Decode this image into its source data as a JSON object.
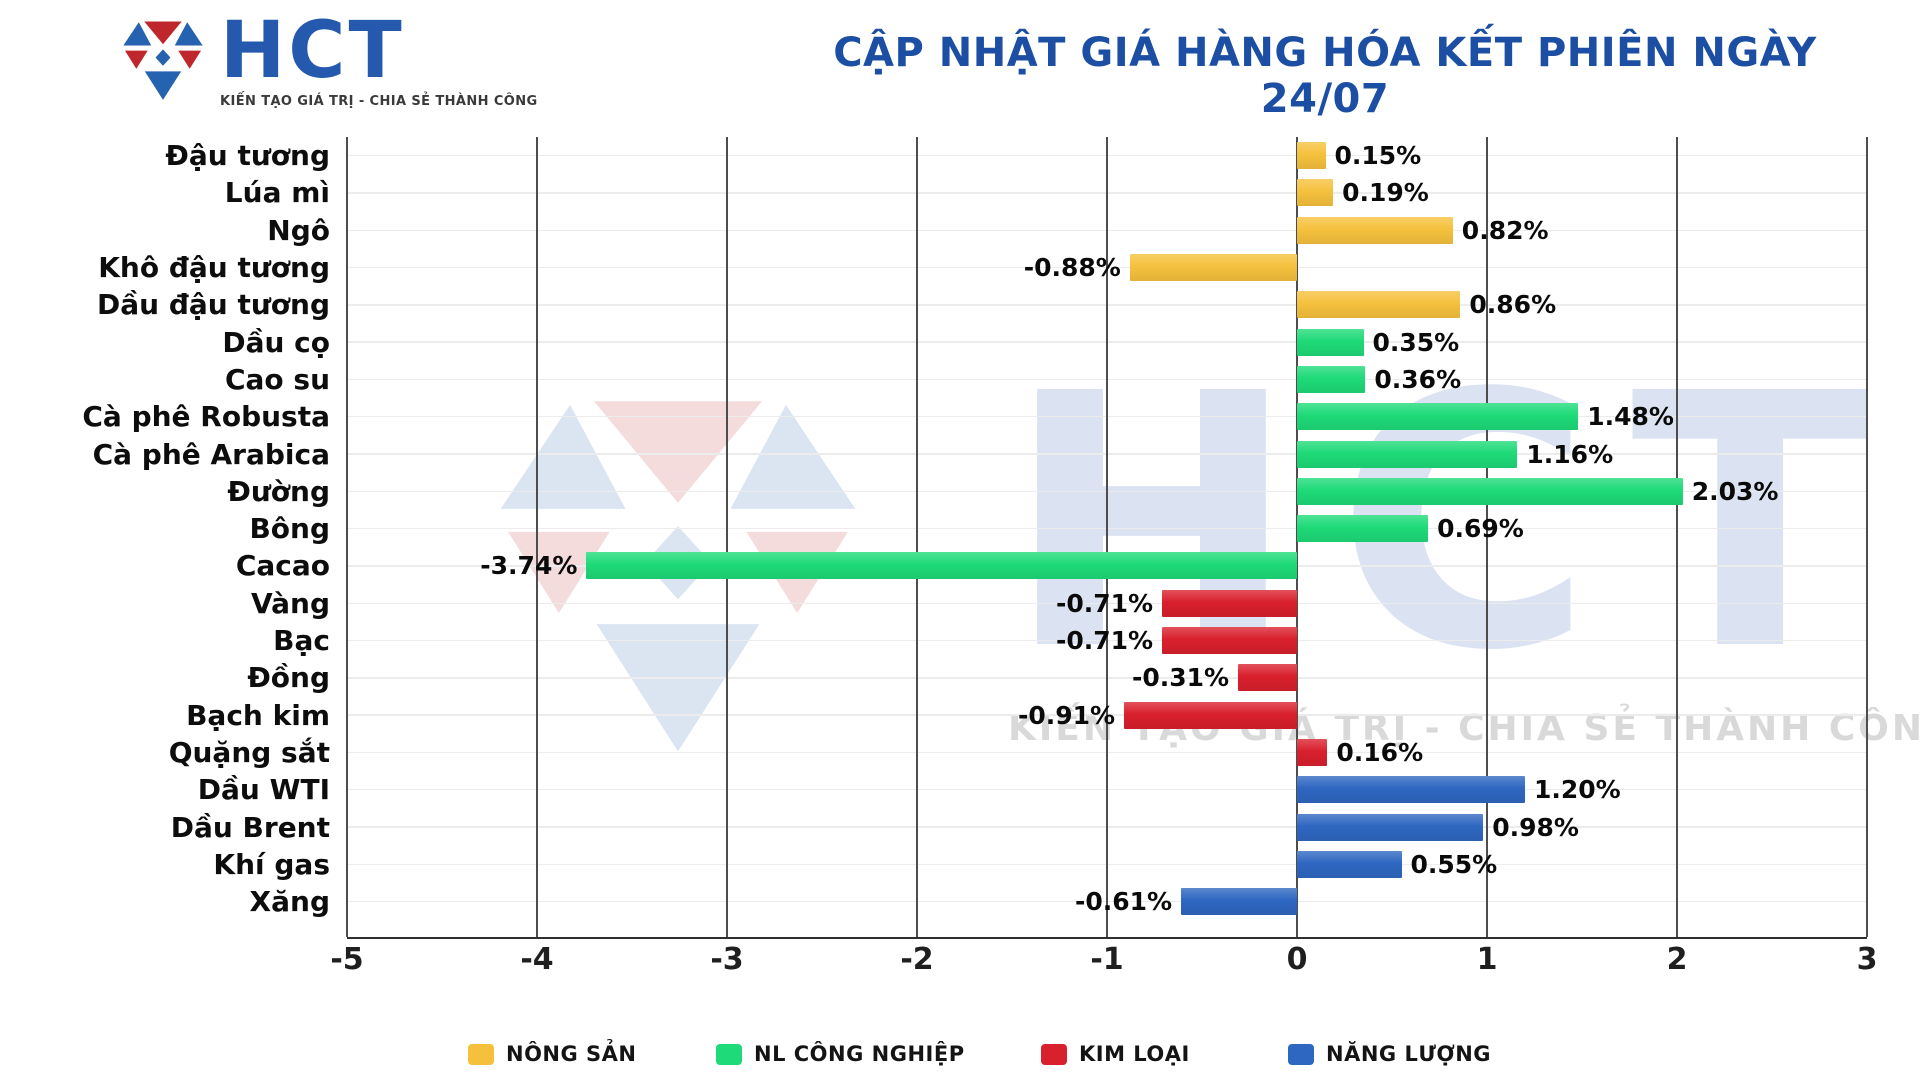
{
  "logo": {
    "text": "HCT",
    "tagline": "KIẾN TẠO GIÁ TRỊ - CHIA SẺ THÀNH CÔNG"
  },
  "watermark": {
    "text": "HCT",
    "tagline": "KIẾN TẠO GIÁ TRỊ - CHIA SẺ THÀNH CÔNG"
  },
  "chart_data": {
    "type": "bar",
    "orientation": "horizontal",
    "title": "CẬP NHẬT GIÁ HÀNG HÓA KẾT PHIÊN NGÀY 24/07",
    "xlim": [
      -5,
      3
    ],
    "xticks": [
      "-5",
      "-4",
      "-3",
      "-2",
      "-1",
      "0",
      "1",
      "2",
      "3"
    ],
    "grid": true,
    "legend_position": "bottom",
    "groups": [
      {
        "name": "NÔNG SẢN",
        "color": "#F5C13D"
      },
      {
        "name": "NL CÔNG NGHIỆP",
        "color": "#1EDA78"
      },
      {
        "name": "KIM LOẠI",
        "color": "#D9202D"
      },
      {
        "name": "NĂNG LƯỢNG",
        "color": "#2E67C1"
      }
    ],
    "items": [
      {
        "label": "Đậu tương",
        "value": 0.15,
        "display": "0.15%",
        "group": "NÔNG SẢN"
      },
      {
        "label": "Lúa mì",
        "value": 0.19,
        "display": "0.19%",
        "group": "NÔNG SẢN"
      },
      {
        "label": "Ngô",
        "value": 0.82,
        "display": "0.82%",
        "group": "NÔNG SẢN"
      },
      {
        "label": "Khô đậu tương",
        "value": -0.88,
        "display": "-0.88%",
        "group": "NÔNG SẢN"
      },
      {
        "label": "Dầu đậu tương",
        "value": 0.86,
        "display": "0.86%",
        "group": "NÔNG SẢN"
      },
      {
        "label": "Dầu cọ",
        "value": 0.35,
        "display": "0.35%",
        "group": "NL CÔNG NGHIỆP"
      },
      {
        "label": "Cao su",
        "value": 0.36,
        "display": "0.36%",
        "group": "NL CÔNG NGHIỆP"
      },
      {
        "label": "Cà phê Robusta",
        "value": 1.48,
        "display": "1.48%",
        "group": "NL CÔNG NGHIỆP"
      },
      {
        "label": "Cà phê Arabica",
        "value": 1.16,
        "display": "1.16%",
        "group": "NL CÔNG NGHIỆP"
      },
      {
        "label": "Đường",
        "value": 2.03,
        "display": "2.03%",
        "group": "NL CÔNG NGHIỆP"
      },
      {
        "label": "Bông",
        "value": 0.69,
        "display": "0.69%",
        "group": "NL CÔNG NGHIỆP"
      },
      {
        "label": "Cacao",
        "value": -3.74,
        "display": "-3.74%",
        "group": "NL CÔNG NGHIỆP"
      },
      {
        "label": "Vàng",
        "value": -0.71,
        "display": "-0.71%",
        "group": "KIM LOẠI"
      },
      {
        "label": "Bạc",
        "value": -0.71,
        "display": "-0.71%",
        "group": "KIM LOẠI"
      },
      {
        "label": "Đồng",
        "value": -0.31,
        "display": "-0.31%",
        "group": "KIM LOẠI"
      },
      {
        "label": "Bạch kim",
        "value": -0.91,
        "display": "-0.91%",
        "group": "KIM LOẠI"
      },
      {
        "label": "Quặng sắt",
        "value": 0.16,
        "display": "0.16%",
        "group": "KIM LOẠI"
      },
      {
        "label": "Dầu WTI",
        "value": 1.2,
        "display": "1.20%",
        "group": "NĂNG LƯỢNG"
      },
      {
        "label": "Dầu Brent",
        "value": 0.98,
        "display": "0.98%",
        "group": "NĂNG LƯỢNG"
      },
      {
        "label": "Khí gas",
        "value": 0.55,
        "display": "0.55%",
        "group": "NĂNG LƯỢNG"
      },
      {
        "label": "Xăng",
        "value": -0.61,
        "display": "-0.61%",
        "group": "NĂNG LƯỢNG"
      }
    ]
  }
}
